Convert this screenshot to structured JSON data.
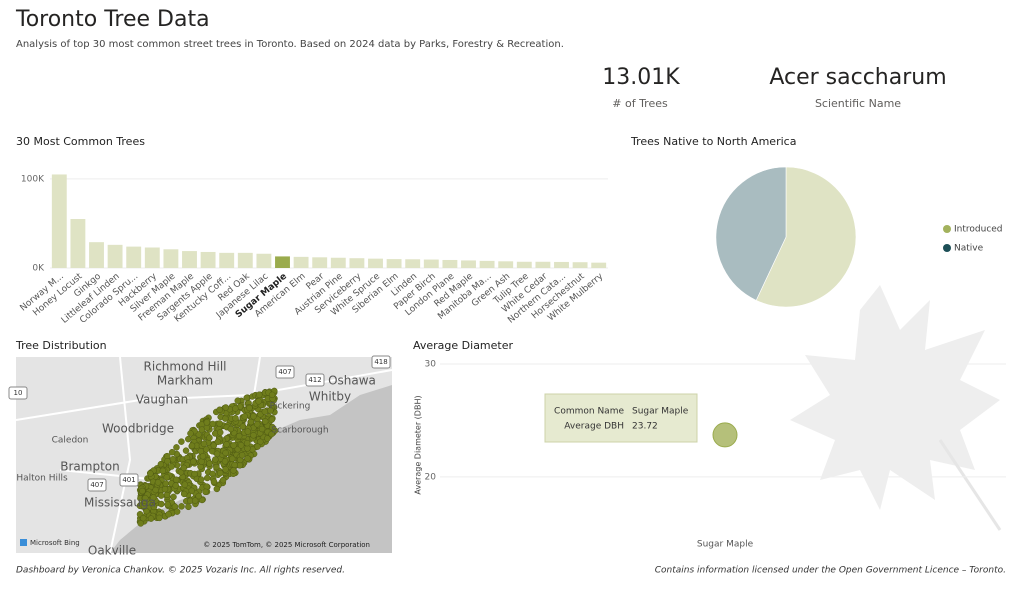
{
  "header": {
    "title": "Toronto Tree Data",
    "subtitle": "Analysis of top 30 most common street trees in Toronto. Based on 2024 data by Parks, Forestry & Recreation."
  },
  "kpis": [
    {
      "value": "13.01K",
      "label": "# of Trees"
    },
    {
      "value": "Acer saccharum",
      "label": "Scientific Name"
    }
  ],
  "chart_data": [
    {
      "type": "bar",
      "title": "30 Most Common Trees",
      "categories": [
        "Norway M...",
        "Honey Locust",
        "Ginkgo",
        "Littleleaf Linden",
        "Colorado Spru...",
        "Hackberry",
        "Silver Maple",
        "Freeman Maple",
        "Sargents Apple",
        "Kentucky Coff...",
        "Red Oak",
        "Japanese Lilac",
        "Sugar Maple",
        "American Elm",
        "Pear",
        "Austrian Pine",
        "Serviceberry",
        "White Spruce",
        "Siberian Elm",
        "Linden",
        "Paper Birch",
        "London Plane",
        "Red Maple",
        "Manitoba Ma...",
        "Green Ash",
        "Tulip Tree",
        "White Cedar",
        "Northern Cata...",
        "Horsechestnut",
        "White Mulberry"
      ],
      "values": [
        105000,
        55000,
        29000,
        26000,
        24000,
        23000,
        21000,
        19000,
        18000,
        17000,
        17000,
        16000,
        13010,
        12500,
        12000,
        11500,
        11000,
        10500,
        10000,
        9800,
        9500,
        9000,
        8500,
        8000,
        7500,
        7000,
        7000,
        6800,
        6500,
        6000
      ],
      "color": "#dfe3c4",
      "highlight": "Sugar Maple",
      "highlight_color": "#9aab4d",
      "ylim": [
        0,
        110000
      ],
      "yticks": [
        {
          "value": 0,
          "label": "0K"
        },
        {
          "value": 100000,
          "label": "100K"
        }
      ],
      "grid": true
    },
    {
      "type": "pie",
      "title": "Trees Native to North America",
      "categories": [
        "Introduced",
        "Native"
      ],
      "values": [
        57,
        43
      ],
      "colors": [
        "#a3b25d",
        "#1d4f57"
      ],
      "slice_colors": [
        "#dfe3c4",
        "#a9bcc0"
      ],
      "legend": "right"
    },
    {
      "type": "scatter",
      "title": "Average Diameter",
      "ylabel": "Average Diameter (DBH)",
      "categories": [
        "Sugar Maple"
      ],
      "values": [
        23.72
      ],
      "color": "#b5c07a",
      "ylim": [
        15.3,
        30.8
      ],
      "yticks": [
        20,
        30
      ],
      "grid": true,
      "tooltip": {
        "rows": [
          [
            "Common Name",
            "Sugar Maple"
          ],
          [
            "Average DBH",
            "23.72"
          ]
        ]
      }
    }
  ],
  "map": {
    "title": "Tree Distribution",
    "places": [
      "Richmond Hill",
      "Markham",
      "Oshawa",
      "Vaughan",
      "Whitby",
      "Pickering",
      "Woodbridge",
      "Caledon",
      "Brampton",
      "Halton Hills",
      "Mississauga",
      "Oakville",
      "Scarborough"
    ],
    "shields": [
      "407",
      "412",
      "418",
      "401",
      "407",
      "10"
    ],
    "credit": "© 2025 TomTom, © 2025 Microsoft Corporation",
    "logo": "Microsoft Bing"
  },
  "footer": {
    "left": "Dashboard by Veronica Chankov. © 2025 Vozaris Inc. All rights reserved.",
    "right": "Contains information licensed under the Open Government Licence – Toronto."
  }
}
